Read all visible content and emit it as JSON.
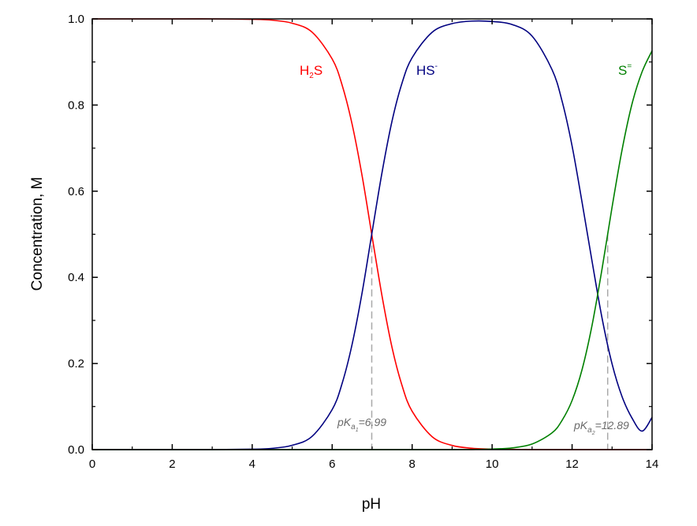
{
  "chart_data": {
    "type": "line",
    "title": "",
    "xlabel": "pH",
    "ylabel": "Concentration, M",
    "xlim": [
      0,
      14
    ],
    "ylim": [
      0,
      1.0
    ],
    "x_ticks": [
      "0",
      "2",
      "4",
      "6",
      "8",
      "10",
      "12",
      "14"
    ],
    "y_ticks": [
      "0.0",
      "0.2",
      "0.4",
      "0.6",
      "0.8",
      "1.0"
    ],
    "grid": false,
    "legend": "none",
    "pka1": 6.99,
    "pka2": 12.89,
    "series": [
      {
        "name": "H2S",
        "label_main": "H",
        "label_sub": "2",
        "label_end": "S",
        "color": "#ff0000",
        "x": [
          0,
          2,
          3,
          4,
          4.5,
          5,
          5.5,
          6,
          6.25,
          6.5,
          6.75,
          7,
          7.25,
          7.5,
          7.75,
          8,
          8.5,
          9,
          9.5,
          10,
          11,
          12,
          13,
          14
        ],
        "y": [
          1.0,
          1.0,
          1.0,
          0.999,
          0.997,
          0.99,
          0.969,
          0.907,
          0.846,
          0.755,
          0.635,
          0.494,
          0.355,
          0.236,
          0.148,
          0.089,
          0.03,
          0.0097,
          0.0031,
          0.001,
          0.0001,
          0.0,
          0.0,
          0.0
        ]
      },
      {
        "name": "HS-",
        "label_main": "HS",
        "label_sup": "-",
        "color": "#000080",
        "x": [
          0,
          2,
          3,
          4,
          4.5,
          5,
          5.5,
          6,
          6.25,
          6.5,
          6.75,
          7,
          7.25,
          7.5,
          7.75,
          8,
          8.5,
          9,
          9.5,
          10,
          10.5,
          11,
          11.5,
          11.75,
          12,
          12.25,
          12.5,
          12.75,
          13,
          13.25,
          13.5,
          13.75,
          14
        ],
        "y": [
          0.0,
          0.0,
          0.0001,
          0.001,
          0.003,
          0.01,
          0.031,
          0.093,
          0.154,
          0.245,
          0.365,
          0.506,
          0.645,
          0.764,
          0.852,
          0.91,
          0.969,
          0.989,
          0.995,
          0.994,
          0.987,
          0.96,
          0.882,
          0.809,
          0.705,
          0.574,
          0.437,
          0.305,
          0.199,
          0.123,
          0.073,
          0.043,
          0.075
        ]
      },
      {
        "name": "S=",
        "label_main": "S",
        "label_sup": "=",
        "color": "#008000",
        "x": [
          0,
          4,
          8,
          9,
          9.5,
          10,
          10.5,
          11,
          11.5,
          11.75,
          12,
          12.25,
          12.5,
          12.75,
          13,
          13.25,
          13.5,
          13.75,
          14
        ],
        "y": [
          0.0,
          0.0,
          0.0,
          0.0001,
          0.0004,
          0.0013,
          0.004,
          0.013,
          0.039,
          0.068,
          0.114,
          0.186,
          0.289,
          0.42,
          0.563,
          0.696,
          0.803,
          0.877,
          0.926
        ]
      }
    ],
    "annotations": [
      {
        "prefix": "pK",
        "sub": "a",
        "subsub": "1",
        "value": "=6.99"
      },
      {
        "prefix": "pK",
        "sub": "a",
        "subsub": "2",
        "value": "=12.89"
      }
    ]
  }
}
